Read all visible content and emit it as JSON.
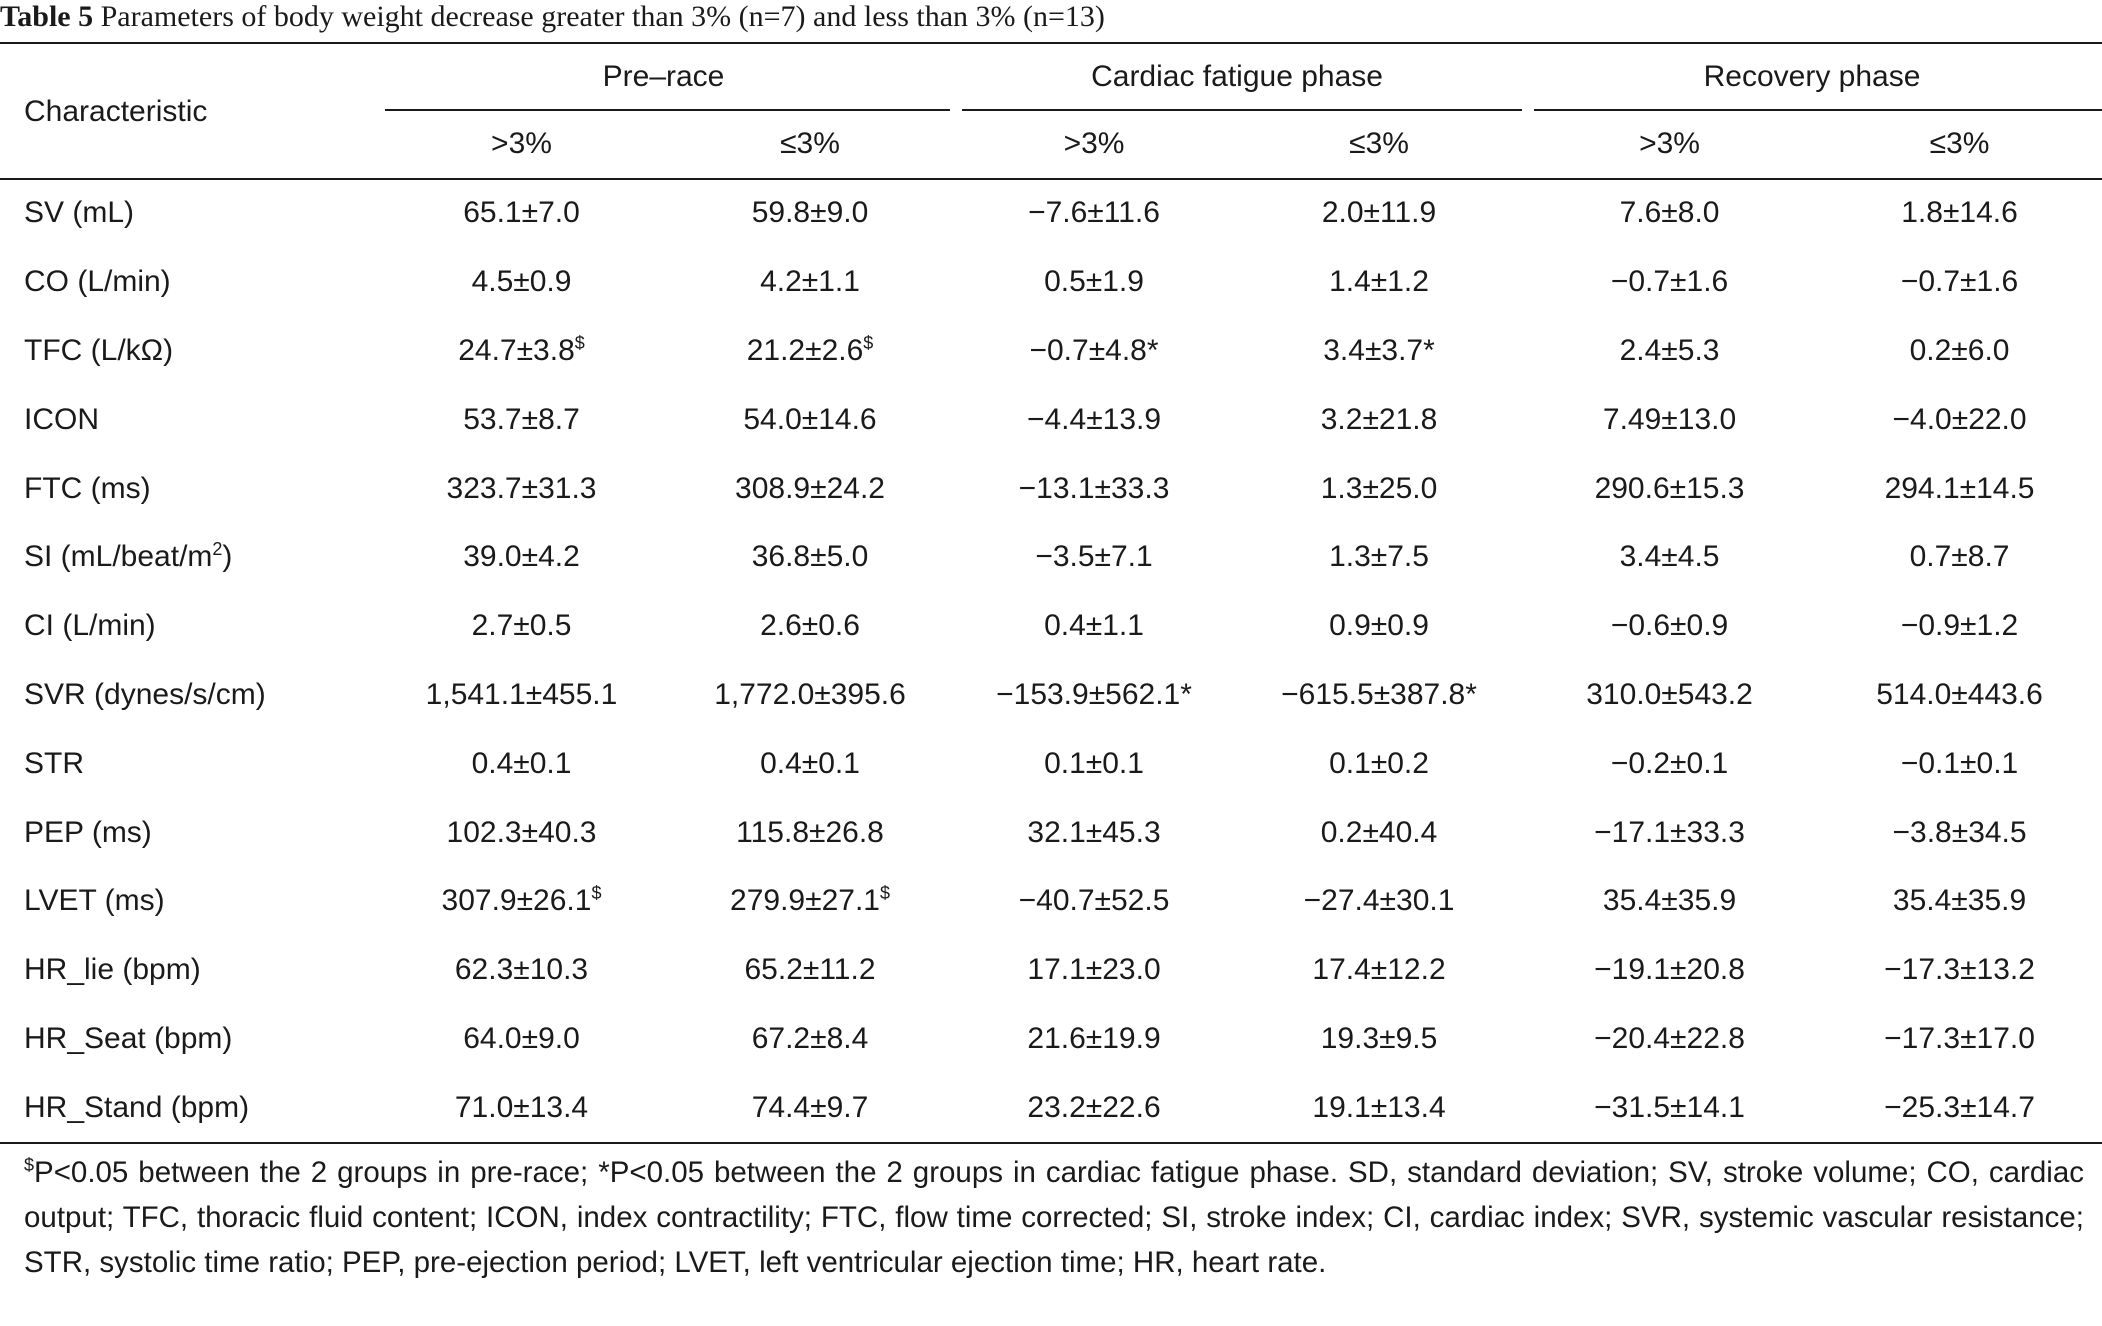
{
  "caption": {
    "label": "Table 5",
    "text": "Parameters of body weight decrease greater than 3% (n=7) and less than 3% (n=13)"
  },
  "table": {
    "char_header": "Characteristic",
    "groups": [
      "Pre–race",
      "Cardiac fatigue phase",
      "Recovery phase"
    ],
    "subheaders": [
      ">3%",
      "≤3%",
      ">3%",
      "≤3%",
      ">3%",
      "≤3%"
    ],
    "rows": [
      {
        "label": "SV (mL)",
        "label_sup": "",
        "label_after": "",
        "cells": [
          {
            "v": "65.1±7.0",
            "s": ""
          },
          {
            "v": "59.8±9.0",
            "s": ""
          },
          {
            "v": "−7.6±11.6",
            "s": ""
          },
          {
            "v": "2.0±11.9",
            "s": ""
          },
          {
            "v": "7.6±8.0",
            "s": ""
          },
          {
            "v": "1.8±14.6",
            "s": ""
          }
        ]
      },
      {
        "label": "CO (L/min)",
        "label_sup": "",
        "label_after": "",
        "cells": [
          {
            "v": "4.5±0.9",
            "s": ""
          },
          {
            "v": "4.2±1.1",
            "s": ""
          },
          {
            "v": "0.5±1.9",
            "s": ""
          },
          {
            "v": "1.4±1.2",
            "s": ""
          },
          {
            "v": "−0.7±1.6",
            "s": ""
          },
          {
            "v": "−0.7±1.6",
            "s": ""
          }
        ]
      },
      {
        "label": "TFC (L/kΩ)",
        "label_sup": "",
        "label_after": "",
        "cells": [
          {
            "v": "24.7±3.8",
            "s": "$"
          },
          {
            "v": "21.2±2.6",
            "s": "$"
          },
          {
            "v": "−0.7±4.8*",
            "s": ""
          },
          {
            "v": "3.4±3.7*",
            "s": ""
          },
          {
            "v": "2.4±5.3",
            "s": ""
          },
          {
            "v": "0.2±6.0",
            "s": ""
          }
        ]
      },
      {
        "label": "ICON",
        "label_sup": "",
        "label_after": "",
        "cells": [
          {
            "v": "53.7±8.7",
            "s": ""
          },
          {
            "v": "54.0±14.6",
            "s": ""
          },
          {
            "v": "−4.4±13.9",
            "s": ""
          },
          {
            "v": "3.2±21.8",
            "s": ""
          },
          {
            "v": "7.49±13.0",
            "s": ""
          },
          {
            "v": "−4.0±22.0",
            "s": ""
          }
        ]
      },
      {
        "label": "FTC (ms)",
        "label_sup": "",
        "label_after": "",
        "cells": [
          {
            "v": "323.7±31.3",
            "s": ""
          },
          {
            "v": "308.9±24.2",
            "s": ""
          },
          {
            "v": "−13.1±33.3",
            "s": ""
          },
          {
            "v": "1.3±25.0",
            "s": ""
          },
          {
            "v": "290.6±15.3",
            "s": ""
          },
          {
            "v": "294.1±14.5",
            "s": ""
          }
        ]
      },
      {
        "label": "SI (mL/beat/m",
        "label_sup": "2",
        "label_after": ")",
        "cells": [
          {
            "v": "39.0±4.2",
            "s": ""
          },
          {
            "v": "36.8±5.0",
            "s": ""
          },
          {
            "v": "−3.5±7.1",
            "s": ""
          },
          {
            "v": "1.3±7.5",
            "s": ""
          },
          {
            "v": "3.4±4.5",
            "s": ""
          },
          {
            "v": "0.7±8.7",
            "s": ""
          }
        ]
      },
      {
        "label": "CI (L/min)",
        "label_sup": "",
        "label_after": "",
        "cells": [
          {
            "v": "2.7±0.5",
            "s": ""
          },
          {
            "v": "2.6±0.6",
            "s": ""
          },
          {
            "v": "0.4±1.1",
            "s": ""
          },
          {
            "v": "0.9±0.9",
            "s": ""
          },
          {
            "v": "−0.6±0.9",
            "s": ""
          },
          {
            "v": "−0.9±1.2",
            "s": ""
          }
        ]
      },
      {
        "label": "SVR (dynes/s/cm)",
        "label_sup": "",
        "label_after": "",
        "cells": [
          {
            "v": "1,541.1±455.1",
            "s": ""
          },
          {
            "v": "1,772.0±395.6",
            "s": ""
          },
          {
            "v": "−153.9±562.1*",
            "s": ""
          },
          {
            "v": "−615.5±387.8*",
            "s": ""
          },
          {
            "v": "310.0±543.2",
            "s": ""
          },
          {
            "v": "514.0±443.6",
            "s": ""
          }
        ]
      },
      {
        "label": "STR",
        "label_sup": "",
        "label_after": "",
        "cells": [
          {
            "v": "0.4±0.1",
            "s": ""
          },
          {
            "v": "0.4±0.1",
            "s": ""
          },
          {
            "v": "0.1±0.1",
            "s": ""
          },
          {
            "v": "0.1±0.2",
            "s": ""
          },
          {
            "v": "−0.2±0.1",
            "s": ""
          },
          {
            "v": "−0.1±0.1",
            "s": ""
          }
        ]
      },
      {
        "label": "PEP (ms)",
        "label_sup": "",
        "label_after": "",
        "cells": [
          {
            "v": "102.3±40.3",
            "s": ""
          },
          {
            "v": "115.8±26.8",
            "s": ""
          },
          {
            "v": "32.1±45.3",
            "s": ""
          },
          {
            "v": "0.2±40.4",
            "s": ""
          },
          {
            "v": "−17.1±33.3",
            "s": ""
          },
          {
            "v": "−3.8±34.5",
            "s": ""
          }
        ]
      },
      {
        "label": "LVET (ms)",
        "label_sup": "",
        "label_after": "",
        "cells": [
          {
            "v": "307.9±26.1",
            "s": "$"
          },
          {
            "v": "279.9±27.1",
            "s": "$"
          },
          {
            "v": "−40.7±52.5",
            "s": ""
          },
          {
            "v": "−27.4±30.1",
            "s": ""
          },
          {
            "v": "35.4±35.9",
            "s": ""
          },
          {
            "v": "35.4±35.9",
            "s": ""
          }
        ]
      },
      {
        "label": "HR_lie (bpm)",
        "label_sup": "",
        "label_after": "",
        "cells": [
          {
            "v": "62.3±10.3",
            "s": ""
          },
          {
            "v": "65.2±11.2",
            "s": ""
          },
          {
            "v": "17.1±23.0",
            "s": ""
          },
          {
            "v": "17.4±12.2",
            "s": ""
          },
          {
            "v": "−19.1±20.8",
            "s": ""
          },
          {
            "v": "−17.3±13.2",
            "s": ""
          }
        ]
      },
      {
        "label": "HR_Seat (bpm)",
        "label_sup": "",
        "label_after": "",
        "cells": [
          {
            "v": "64.0±9.0",
            "s": ""
          },
          {
            "v": "67.2±8.4",
            "s": ""
          },
          {
            "v": "21.6±19.9",
            "s": ""
          },
          {
            "v": "19.3±9.5",
            "s": ""
          },
          {
            "v": "−20.4±22.8",
            "s": ""
          },
          {
            "v": "−17.3±17.0",
            "s": ""
          }
        ]
      },
      {
        "label": "HR_Stand (bpm)",
        "label_sup": "",
        "label_after": "",
        "cells": [
          {
            "v": "71.0±13.4",
            "s": ""
          },
          {
            "v": "74.4±9.7",
            "s": ""
          },
          {
            "v": "23.2±22.6",
            "s": ""
          },
          {
            "v": "19.1±13.4",
            "s": ""
          },
          {
            "v": "−31.5±14.1",
            "s": ""
          },
          {
            "v": "−25.3±14.7",
            "s": ""
          }
        ]
      }
    ]
  },
  "footnote": {
    "sup": "$",
    "text": "P<0.05 between the 2 groups in pre-race; *P<0.05 between the 2 groups in cardiac fatigue phase. SD, standard deviation; SV, stroke volume; CO, cardiac output; TFC, thoracic fluid content; ICON, index contractility; FTC, flow time corrected; SI, stroke index; CI, cardiac index; SVR, systemic vascular resistance; STR, systolic time ratio; PEP, pre-ejection period; LVET, left ventricular ejection time; HR, heart rate."
  }
}
